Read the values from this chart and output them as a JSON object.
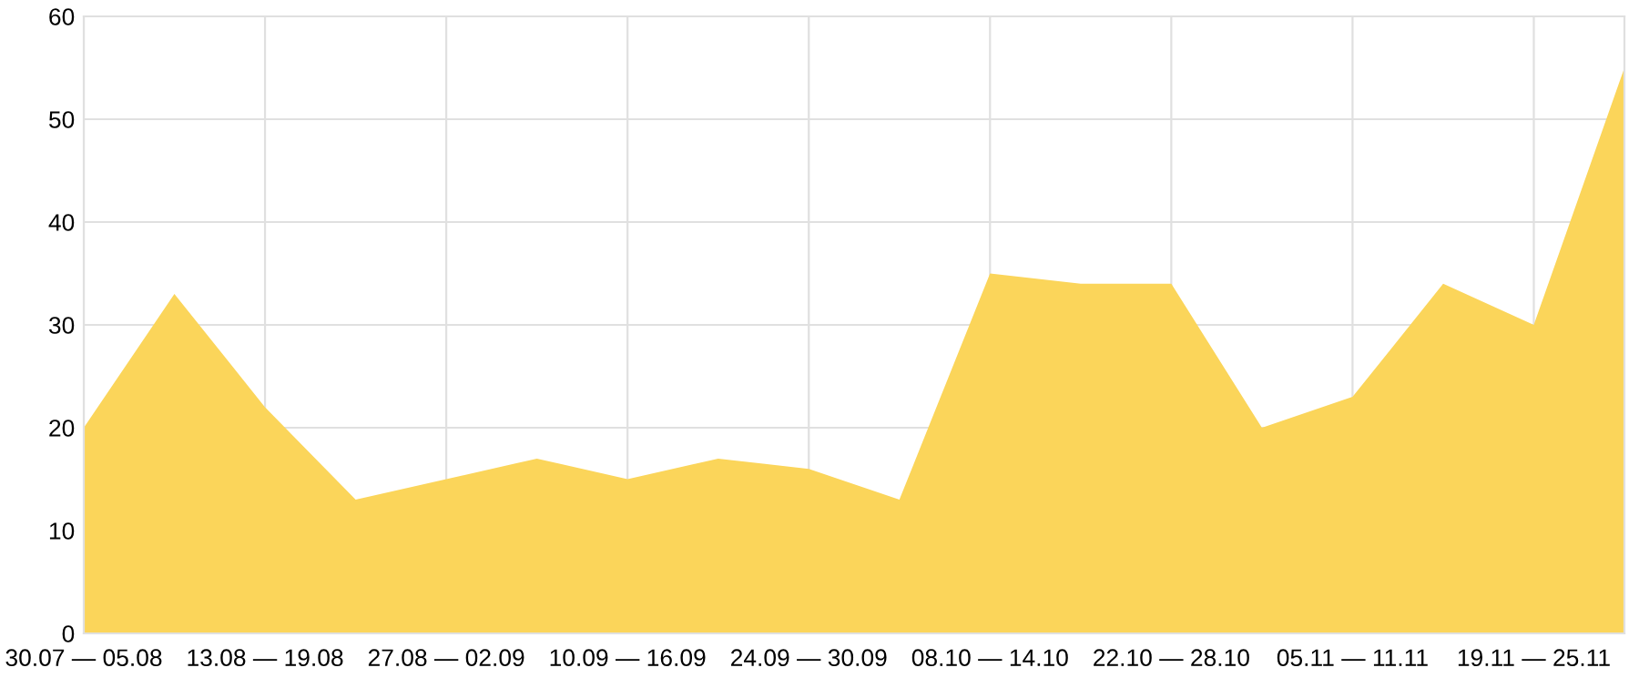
{
  "chart_data": {
    "type": "area",
    "categories": [
      "30.07 — 05.08",
      null,
      "13.08 — 19.08",
      null,
      "27.08 — 02.09",
      null,
      "10.09 — 16.09",
      null,
      "24.09 — 30.09",
      null,
      "08.10 — 14.10",
      null,
      "22.10 — 28.10",
      null,
      "05.11 — 11.11",
      null,
      "19.11 — 25.11",
      null
    ],
    "values": [
      20,
      33,
      22,
      13,
      15,
      17,
      15,
      17,
      16,
      13,
      35,
      34,
      34,
      20,
      23,
      34,
      30,
      55
    ],
    "color": "#fbd55a",
    "ylim": [
      0,
      60
    ],
    "yticks": [
      0,
      10,
      20,
      30,
      40,
      50,
      60
    ],
    "grid": true,
    "legend": false
  }
}
